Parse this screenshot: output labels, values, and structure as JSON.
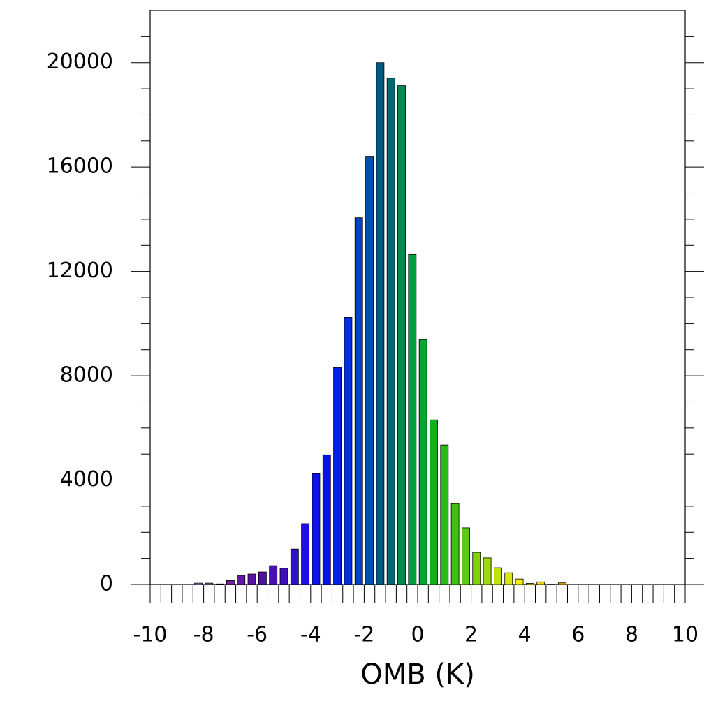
{
  "chart_data": {
    "type": "histogram",
    "x_label": "OMB (K)",
    "bins": [
      -10,
      -9.6,
      -9.2,
      -8.8,
      -8.4,
      -8,
      -7.6,
      -7.2,
      -6.8,
      -6.4,
      -6,
      -5.6,
      -5.2,
      -4.8,
      -4.4,
      -4,
      -3.6,
      -3.2,
      -2.8,
      -2.4,
      -2,
      -1.6,
      -1.2,
      -0.8,
      -0.4,
      0,
      0.4,
      0.8,
      1.2,
      1.6,
      2,
      2.4,
      2.8,
      3.2,
      3.6,
      4,
      4.4,
      4.8,
      5.2,
      5.6,
      6,
      6.4,
      6.8,
      7.2,
      7.6,
      8,
      8.4,
      8.8,
      9.2,
      9.6,
      10
    ],
    "values": [
      0,
      0,
      0,
      0,
      50,
      50,
      20,
      150,
      350,
      400,
      480,
      720,
      620,
      1360,
      2330,
      4250,
      4970,
      8320,
      10240,
      14060,
      16390,
      20000,
      19410,
      19120,
      12650,
      9390,
      6310,
      5350,
      3100,
      2170,
      1230,
      1020,
      640,
      450,
      210,
      40,
      100,
      10,
      60,
      0,
      0,
      0,
      0,
      0,
      0,
      0,
      0,
      0,
      0,
      0
    ],
    "colors": [
      "#d8b0e8",
      "#c8a0e0",
      "#b890d8",
      "#a880d0",
      "#b080d0",
      "#9860c0",
      "#8848b0",
      "#7020a0",
      "#6418a4",
      "#5a14a8",
      "#5010a8",
      "#4a10b4",
      "#4010c0",
      "#3010d0",
      "#2010e0",
      "#1010e8",
      "#0010f0",
      "#0020e8",
      "#0030e0",
      "#0040c8",
      "#0050b0",
      "#005a80",
      "#006a70",
      "#008a50",
      "#00a040",
      "#00a830",
      "#10b020",
      "#28b818",
      "#40c010",
      "#60c810",
      "#80d010",
      "#a0d810",
      "#c0e010",
      "#d8e808",
      "#f0f000",
      "#f0e000",
      "#f0d000",
      "#f0c000",
      "#f0b000",
      "#f0a800",
      "#f0a000",
      "#f09800",
      "#f09000",
      "#f08800",
      "#f08000",
      "#f07800",
      "#f07000",
      "#f06800",
      "#f06000",
      "#f05800"
    ],
    "xlim": [
      -10,
      10
    ],
    "xticks": [
      -10,
      -8,
      -6,
      -4,
      -2,
      0,
      2,
      4,
      6,
      8,
      10
    ],
    "ylim": [
      0,
      22000
    ],
    "yticks": [
      0,
      4000,
      8000,
      12000,
      16000,
      20000
    ],
    "y_minor_ticks": [
      1000,
      2000,
      3000,
      5000,
      6000,
      7000,
      9000,
      10000,
      11000,
      13000,
      14000,
      15000,
      17000,
      18000,
      19000,
      21000
    ]
  }
}
